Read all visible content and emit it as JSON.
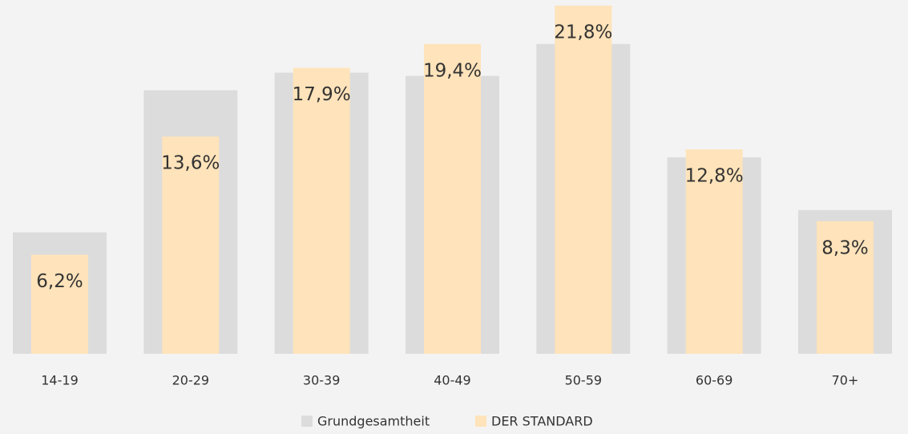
{
  "chart_data": {
    "type": "bar",
    "categories": [
      "14-19",
      "20-29",
      "30-39",
      "40-49",
      "50-59",
      "60-69",
      "70+"
    ],
    "series": [
      {
        "name": "Grundgesamtheit",
        "color": "#dcdcdc",
        "values": [
          7.6,
          16.5,
          17.6,
          17.4,
          19.4,
          12.3,
          9.0
        ]
      },
      {
        "name": "DER STANDARD",
        "color": "#ffe3ba",
        "values": [
          6.2,
          13.6,
          17.9,
          19.4,
          21.8,
          12.8,
          8.3
        ],
        "value_labels": [
          "6,2%",
          "13,6%",
          "17,9%",
          "19,4%",
          "21,8%",
          "12,8%",
          "8,3%"
        ]
      }
    ],
    "legend": "bottom"
  }
}
